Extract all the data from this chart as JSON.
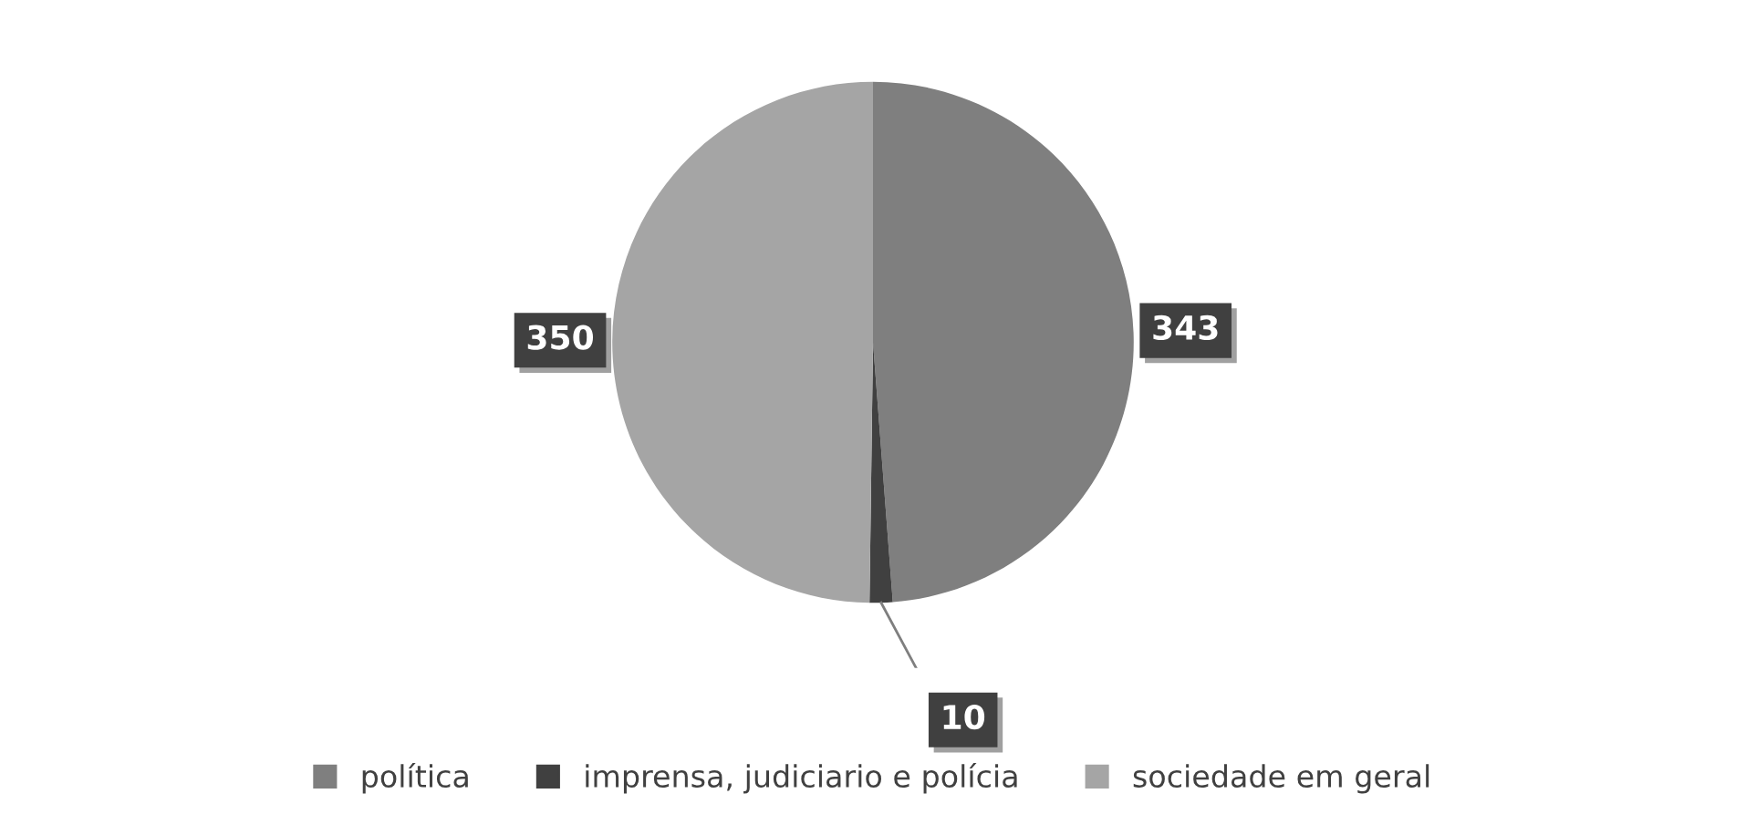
{
  "chart_data": {
    "type": "pie",
    "categories": [
      "política",
      "imprensa, judiciario e polícia",
      "sociedade em geral"
    ],
    "values": [
      343,
      10,
      350
    ],
    "colors": [
      "#7f7f7f",
      "#404040",
      "#a5a5a5"
    ],
    "data_labels": true,
    "legend": "bottom"
  }
}
